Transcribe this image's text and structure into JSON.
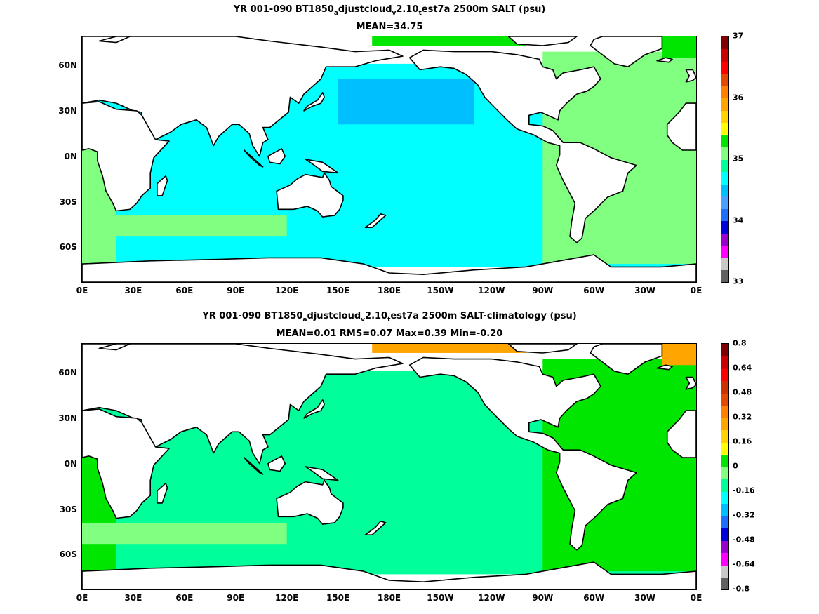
{
  "figure": {
    "panels": [
      {
        "title_parts": [
          "YR 001-090 BT1850",
          "a",
          "djustcloud",
          "v",
          "2.10",
          "t",
          "est7a 2500m SALT (psu)"
        ],
        "subtitle": "MEAN=34.75",
        "colorbar": {
          "colors": [
            "#606060",
            "#c8c8c8",
            "#ff00ff",
            "#9900cc",
            "#0000dd",
            "#1f6fff",
            "#4aa0ff",
            "#00bfff",
            "#00ffff",
            "#00ff9a",
            "#80ff80",
            "#00e600",
            "#ffff00",
            "#ffd200",
            "#ffa500",
            "#ff7f00",
            "#e34a00",
            "#ff0000",
            "#cc0000",
            "#800000"
          ],
          "labels": [
            "33",
            "34",
            "35",
            "36",
            "37"
          ]
        },
        "fills": {
          "pacific": "#00ffff",
          "north_pacific": "#00bfff",
          "atlantic": "#80ff80",
          "arctic": "#00e600",
          "southern_band": "#80ff80"
        }
      },
      {
        "title_parts": [
          "YR 001-090 BT1850",
          "a",
          "djustcloud",
          "v",
          "2.10",
          "t",
          "est7a 2500m SALT-climatology (psu)"
        ],
        "subtitle": "MEAN=0.01   RMS=0.07   Max=0.39   Min=-0.20",
        "colorbar": {
          "colors": [
            "#606060",
            "#c8c8c8",
            "#ff00ff",
            "#9900cc",
            "#0000dd",
            "#1f6fff",
            "#00bfff",
            "#00ffff",
            "#00ff9a",
            "#80ff80",
            "#00e600",
            "#ffff00",
            "#ffd200",
            "#ffa500",
            "#ff7f00",
            "#e34a00",
            "#cc3300",
            "#ff0000",
            "#cc0000",
            "#800000"
          ],
          "labels": [
            "-0.8",
            "-0.64",
            "-0.48",
            "-0.32",
            "-0.16",
            "0",
            "0.16",
            "0.32",
            "0.48",
            "0.64",
            "0.8"
          ]
        },
        "fills": {
          "pacific": "#00ff9a",
          "north_pacific": "#00ff9a",
          "atlantic": "#00e600",
          "arctic": "#ffa500",
          "southern_band": "#80ff80"
        }
      }
    ],
    "x_ticks": [
      "0E",
      "30E",
      "60E",
      "90E",
      "120E",
      "150E",
      "180E",
      "150W",
      "120W",
      "90W",
      "60W",
      "30W",
      "0E"
    ],
    "y_ticks": [
      "60N",
      "30N",
      "0N",
      "30S",
      "60S"
    ]
  },
  "chart_data": [
    {
      "type": "heatmap",
      "title": "YR 001-090 BT1850_adjustcloud_v2.10_test7a 2500m SALT (psu)",
      "subtitle": "MEAN=34.75",
      "x_ticks": [
        "0E",
        "30E",
        "60E",
        "90E",
        "120E",
        "150E",
        "180E",
        "150W",
        "120W",
        "90W",
        "60W",
        "30W",
        "0E"
      ],
      "y_ticks": [
        "60N",
        "30N",
        "0N",
        "30S",
        "60S"
      ],
      "colorbar_range": [
        33,
        37
      ],
      "colorbar_labels": [
        33,
        34,
        35,
        36,
        37
      ],
      "mean": 34.75
    },
    {
      "type": "heatmap",
      "title": "YR 001-090 BT1850_adjustcloud_v2.10_test7a 2500m SALT-climatology (psu)",
      "subtitle": "MEAN=0.01   RMS=0.07   Max=0.39   Min=-0.20",
      "x_ticks": [
        "0E",
        "30E",
        "60E",
        "90E",
        "120E",
        "150E",
        "180E",
        "150W",
        "120W",
        "90W",
        "60W",
        "30W",
        "0E"
      ],
      "y_ticks": [
        "60N",
        "30N",
        "0N",
        "30S",
        "60S"
      ],
      "colorbar_range": [
        -0.8,
        0.8
      ],
      "colorbar_labels": [
        -0.8,
        -0.64,
        -0.48,
        -0.32,
        -0.16,
        0,
        0.16,
        0.32,
        0.48,
        0.64,
        0.8
      ],
      "mean": 0.01,
      "rms": 0.07,
      "max": 0.39,
      "min": -0.2
    }
  ]
}
